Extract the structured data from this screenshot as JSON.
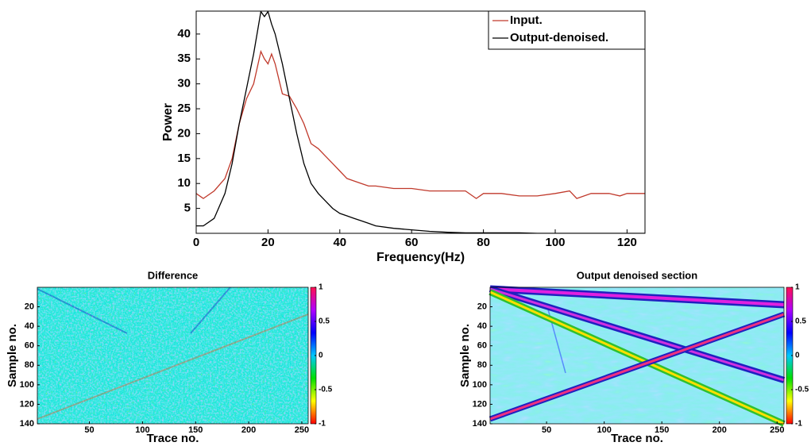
{
  "chart_data": [
    {
      "type": "line",
      "xlabel": "Frequency(Hz)",
      "ylabel": "Power",
      "x": [
        0,
        2,
        5,
        8,
        10,
        12,
        14,
        16,
        18,
        19,
        20,
        21,
        22,
        24,
        26,
        28,
        30,
        32,
        34,
        36,
        38,
        40,
        42,
        44,
        46,
        48,
        50,
        55,
        60,
        65,
        70,
        75,
        78,
        80,
        85,
        90,
        95,
        100,
        104,
        106,
        110,
        115,
        118,
        120,
        125
      ],
      "series": [
        {
          "name": "Input.",
          "color": "#c0392b",
          "values": [
            8,
            7,
            8.5,
            11,
            15,
            22,
            27,
            30,
            36.5,
            35,
            34,
            36,
            34,
            28,
            27.5,
            25,
            22,
            18,
            17,
            15.5,
            14,
            12.5,
            11,
            10.5,
            10,
            9.5,
            9.5,
            9,
            9,
            8.5,
            8.5,
            8.5,
            7,
            8,
            8,
            7.5,
            7.5,
            8,
            8.5,
            7,
            8,
            8,
            7.5,
            8,
            8
          ]
        },
        {
          "name": "Output-denoised.",
          "color": "#000000",
          "values": [
            1.5,
            1.5,
            3,
            8,
            14,
            22,
            29,
            36,
            44.5,
            43.5,
            44.5,
            42,
            40,
            34,
            27,
            20,
            14,
            10,
            8,
            6.5,
            5,
            4,
            3.5,
            3,
            2.5,
            2,
            1.5,
            1,
            0.7,
            0.4,
            0.2,
            0.1,
            0.1,
            0.1,
            0.1,
            0.1,
            0,
            0,
            0,
            0,
            0,
            0,
            0,
            0,
            0
          ]
        }
      ],
      "xlim": [
        0,
        125
      ],
      "ylim": [
        0,
        44.6
      ],
      "xticks": [
        0,
        20,
        40,
        60,
        80,
        100,
        120
      ],
      "yticks": [
        5,
        10,
        15,
        20,
        25,
        30,
        35,
        40
      ],
      "legend": "upper right"
    },
    {
      "type": "heatmap",
      "title": "Difference",
      "xlabel": "Trace no.",
      "ylabel": "Sample no.",
      "xlim": [
        1,
        256
      ],
      "ylim": [
        0,
        140
      ],
      "y_reversed": true,
      "xticks": [
        50,
        100,
        150,
        200,
        250
      ],
      "yticks": [
        20,
        40,
        60,
        80,
        100,
        120,
        140
      ],
      "clim": [
        -1,
        1
      ],
      "cticks": [
        -1,
        -0.5,
        0,
        0.5,
        1
      ],
      "colormap": [
        "#ff0000",
        "#ffff00",
        "#00e000",
        "#00c8ff",
        "#0000ff",
        "#b000ff",
        "#ff1050"
      ]
    },
    {
      "type": "heatmap",
      "title": "Output denoised section",
      "xlabel": "Trace no.",
      "ylabel": "Sample no.",
      "xlim": [
        1,
        256
      ],
      "ylim": [
        0,
        140
      ],
      "y_reversed": true,
      "xticks": [
        50,
        100,
        150,
        200,
        250
      ],
      "yticks": [
        20,
        40,
        60,
        80,
        100,
        120,
        140
      ],
      "clim": [
        -1,
        1
      ],
      "cticks": [
        -1,
        -0.5,
        0,
        0.5,
        1
      ],
      "colormap": [
        "#ff0000",
        "#ffff00",
        "#00e000",
        "#00c8ff",
        "#0000ff",
        "#b000ff",
        "#ff1050"
      ]
    }
  ]
}
